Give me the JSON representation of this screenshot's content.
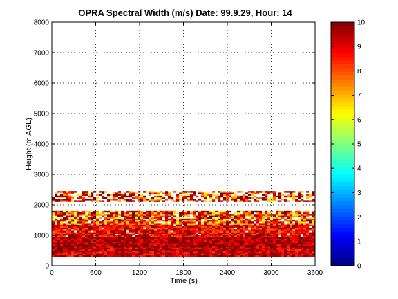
{
  "chart_data": {
    "type": "heatmap",
    "title": "OPRA Spectral Width (m/s)  Date: 99.9.29, Hour: 14",
    "xlabel": "Time (s)",
    "ylabel": "Height (m AGL)",
    "xlim": [
      0,
      3600
    ],
    "ylim": [
      0,
      8000
    ],
    "xticks": [
      "0",
      "600",
      "1200",
      "1800",
      "2400",
      "3000",
      "3600"
    ],
    "yticks": [
      "0",
      "1000",
      "2000",
      "3000",
      "4000",
      "5000",
      "6000",
      "7000",
      "8000"
    ],
    "grid": true,
    "colorbar": {
      "min": 0,
      "max": 10,
      "ticks": [
        "0",
        "1",
        "2",
        "3",
        "4",
        "5",
        "6",
        "7",
        "8",
        "9",
        "10"
      ],
      "colormap": "jet"
    },
    "layers": [
      {
        "height_range": [
          300,
          600
        ],
        "typical_value": 9.5,
        "coverage": 1.0
      },
      {
        "height_range": [
          600,
          950
        ],
        "typical_value": 9.8,
        "coverage": 1.0
      },
      {
        "height_range": [
          950,
          1350
        ],
        "typical_value": 9.0,
        "coverage": 0.95
      },
      {
        "height_range": [
          1350,
          1800
        ],
        "typical_value": 8.5,
        "coverage": 0.85
      },
      {
        "height_range": [
          2100,
          2450
        ],
        "typical_value": 9.0,
        "coverage": 0.6
      }
    ]
  }
}
